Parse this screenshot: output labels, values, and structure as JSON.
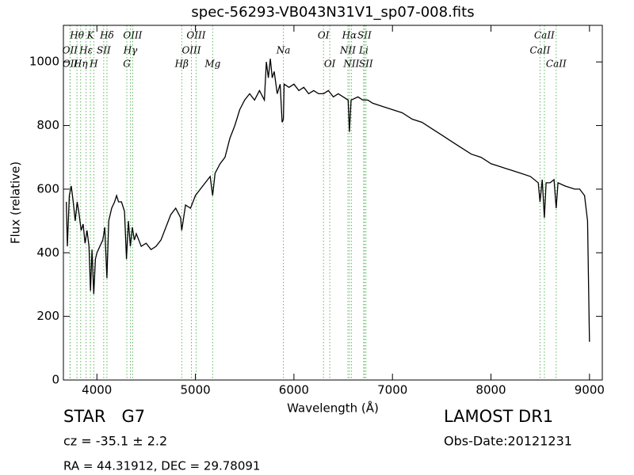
{
  "chart_data": {
    "type": "line",
    "title": "spec-56293-VB043N31V1_sp07-008.fits",
    "xlabel": "Wavelength (Å)",
    "ylabel": "Flux (relative)",
    "xlim": [
      3660,
      9130
    ],
    "ylim": [
      0,
      1115
    ],
    "xticks": [
      4000,
      5000,
      6000,
      7000,
      8000,
      9000
    ],
    "yticks": [
      0,
      200,
      400,
      600,
      800,
      1000
    ],
    "color": "#000000",
    "line_color": "#5cb85c",
    "x": [
      3690,
      3700,
      3720,
      3740,
      3760,
      3780,
      3800,
      3820,
      3840,
      3860,
      3880,
      3900,
      3920,
      3935,
      3950,
      3968,
      3985,
      4000,
      4030,
      4060,
      4080,
      4102,
      4120,
      4150,
      4180,
      4200,
      4220,
      4250,
      4280,
      4300,
      4320,
      4340,
      4360,
      4380,
      4400,
      4450,
      4500,
      4550,
      4600,
      4650,
      4700,
      4750,
      4800,
      4850,
      4861,
      4900,
      4950,
      5000,
      5050,
      5100,
      5150,
      5175,
      5200,
      5250,
      5300,
      5350,
      5400,
      5450,
      5500,
      5550,
      5600,
      5650,
      5700,
      5720,
      5740,
      5760,
      5780,
      5800,
      5830,
      5860,
      5880,
      5893,
      5900,
      5950,
      6000,
      6050,
      6100,
      6150,
      6200,
      6250,
      6300,
      6350,
      6400,
      6450,
      6500,
      6550,
      6563,
      6580,
      6650,
      6700,
      6750,
      6800,
      6900,
      7000,
      7100,
      7200,
      7300,
      7400,
      7500,
      7600,
      7700,
      7800,
      7900,
      8000,
      8100,
      8200,
      8300,
      8400,
      8480,
      8498,
      8520,
      8542,
      8560,
      8600,
      8640,
      8662,
      8680,
      8750,
      8850,
      8900,
      8950,
      8980,
      9000
    ],
    "values": [
      560,
      420,
      580,
      610,
      560,
      500,
      560,
      520,
      470,
      490,
      430,
      470,
      420,
      280,
      410,
      270,
      380,
      400,
      420,
      440,
      480,
      320,
      500,
      540,
      560,
      580,
      560,
      560,
      530,
      380,
      500,
      420,
      480,
      440,
      460,
      420,
      430,
      410,
      420,
      440,
      480,
      520,
      540,
      510,
      470,
      550,
      540,
      580,
      600,
      620,
      640,
      580,
      650,
      680,
      700,
      760,
      800,
      850,
      880,
      900,
      880,
      910,
      880,
      1000,
      950,
      1010,
      950,
      970,
      900,
      930,
      810,
      820,
      930,
      920,
      930,
      910,
      920,
      900,
      910,
      900,
      900,
      910,
      890,
      900,
      890,
      880,
      780,
      880,
      890,
      880,
      880,
      870,
      860,
      850,
      840,
      820,
      810,
      790,
      770,
      750,
      730,
      710,
      700,
      680,
      670,
      660,
      650,
      640,
      620,
      560,
      630,
      510,
      620,
      620,
      630,
      540,
      620,
      610,
      600,
      600,
      580,
      500,
      120
    ],
    "lines": [
      {
        "label": "Hθ",
        "x": 3798
      },
      {
        "label": "K",
        "x": 3934
      },
      {
        "label": "Hδ",
        "x": 4102
      },
      {
        "label": "OIII",
        "x": 4363
      },
      {
        "label": "OIII",
        "x": 5007
      },
      {
        "label": "OI",
        "x": 6300
      },
      {
        "label": "Hα",
        "x": 6563
      },
      {
        "label": "SII",
        "x": 6716
      },
      {
        "label": "CaII",
        "x": 8542
      },
      {
        "label": "OII",
        "x": 3727
      },
      {
        "label": "Hε",
        "x": 3890
      },
      {
        "label": "SII",
        "x": 4069
      },
      {
        "label": "Hγ",
        "x": 4340
      },
      {
        "label": "OIII",
        "x": 4959
      },
      {
        "label": "Na",
        "x": 5893
      },
      {
        "label": "NII",
        "x": 6548
      },
      {
        "label": "Li",
        "x": 6708
      },
      {
        "label": "CaII",
        "x": 8498
      },
      {
        "label": "OII",
        "x": 3729
      },
      {
        "label": "Hη",
        "x": 3835
      },
      {
        "label": "H",
        "x": 3969
      },
      {
        "label": "G",
        "x": 4304
      },
      {
        "label": "Hβ",
        "x": 4861
      },
      {
        "label": "Mg",
        "x": 5175
      },
      {
        "label": "OI",
        "x": 6364
      },
      {
        "label": "NII",
        "x": 6583
      },
      {
        "label": "SII",
        "x": 6731
      },
      {
        "label": "CaII",
        "x": 8662
      }
    ]
  },
  "footer": {
    "class": "STAR   G7",
    "release": "LAMOST DR1",
    "cz": "cz = -35.1 ± 2.2",
    "date": "Obs-Date:20121231",
    "coords": "RA = 44.31912, DEC = 29.78091"
  }
}
